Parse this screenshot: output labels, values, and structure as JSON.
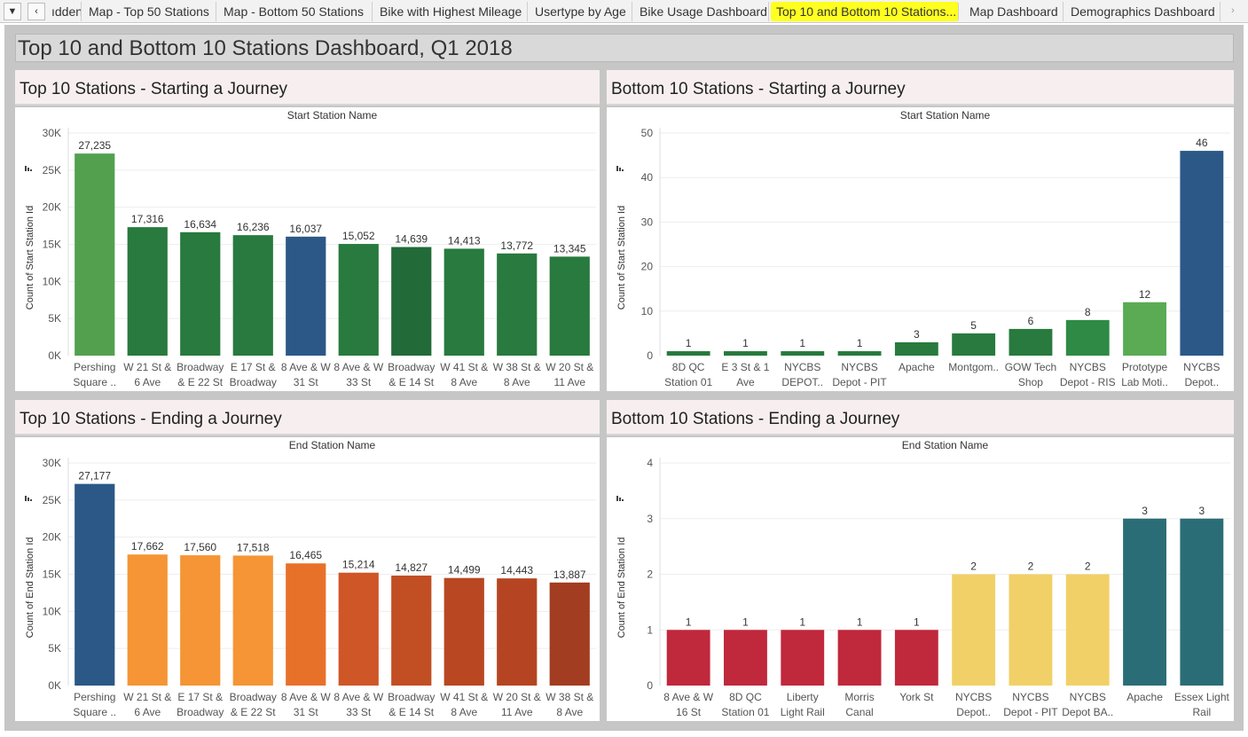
{
  "tabs": {
    "menu_icon": "dropdown-caret",
    "prev_icon": "chevron-left",
    "next_icon": "chevron-right",
    "items": [
      "ıdden",
      "Map - Top 50 Stations",
      "Map - Bottom 50 Stations",
      "Bike with Highest Mileage",
      "Usertype by Age",
      "Bike Usage Dashboard",
      "Top 10 and Bottom 10 Stations...",
      "Map Dashboard",
      "Demographics Dashboard"
    ],
    "active_index": 6,
    "highlight_color": "#ffff20"
  },
  "dashboard": {
    "title": "Top 10 and Bottom 10 Stations Dashboard, Q1 2018"
  },
  "panels": [
    {
      "title": "Top 10 Stations - Starting a Journey"
    },
    {
      "title": "Bottom 10 Stations - Starting a Journey"
    },
    {
      "title": "Top 10 Stations - Ending a Journey"
    },
    {
      "title": "Bottom 10 Stations - Ending a Journey"
    }
  ],
  "chart_data": [
    {
      "type": "bar",
      "title": "Start Station Name",
      "ylabel": "Count of Start Station Id",
      "ylim": [
        0,
        30000
      ],
      "yticks": [
        0,
        5000,
        10000,
        15000,
        20000,
        25000,
        30000
      ],
      "ytick_labels": [
        "0K",
        "5K",
        "10K",
        "15K",
        "20K",
        "25K",
        "30K"
      ],
      "grid": true,
      "categories": [
        [
          "Pershing",
          "Square .."
        ],
        [
          "W 21 St &",
          "6 Ave"
        ],
        [
          "Broadway",
          "& E 22 St"
        ],
        [
          "E 17 St &",
          "Broadway"
        ],
        [
          "8 Ave & W",
          "31 St"
        ],
        [
          "8 Ave & W",
          "33 St"
        ],
        [
          "Broadway",
          "& E 14 St"
        ],
        [
          "W 41 St &",
          "8 Ave"
        ],
        [
          "W 38 St &",
          "8 Ave"
        ],
        [
          "W 20 St &",
          "11 Ave"
        ]
      ],
      "values": [
        27235,
        17316,
        16634,
        16236,
        16037,
        15052,
        14639,
        14413,
        13772,
        13345
      ],
      "value_labels": [
        "27,235",
        "17,316",
        "16,634",
        "16,236",
        "16,037",
        "15,052",
        "14,639",
        "14,413",
        "13,772",
        "13,345"
      ],
      "colors": [
        "#53a04f",
        "#287a3e",
        "#287a3e",
        "#287a3e",
        "#2b5886",
        "#287a3e",
        "#226b38",
        "#287a3e",
        "#287a3e",
        "#287a3e"
      ]
    },
    {
      "type": "bar",
      "title": "Start Station Name",
      "ylabel": "Count of Start Station Id",
      "ylim": [
        0,
        50
      ],
      "yticks": [
        0,
        10,
        20,
        30,
        40,
        50
      ],
      "ytick_labels": [
        "0",
        "10",
        "20",
        "30",
        "40",
        "50"
      ],
      "grid": true,
      "categories": [
        [
          "8D QC",
          "Station 01"
        ],
        [
          "E 3 St & 1",
          "Ave"
        ],
        [
          "NYCBS",
          "DEPOT.."
        ],
        [
          "NYCBS",
          "Depot - PIT"
        ],
        [
          "Apache",
          ""
        ],
        [
          "Montgom..",
          ""
        ],
        [
          "GOW Tech",
          "Shop"
        ],
        [
          "NYCBS",
          "Depot - RIS"
        ],
        [
          "Prototype",
          "Lab Moti.."
        ],
        [
          "NYCBS",
          "Depot.."
        ]
      ],
      "values": [
        1,
        1,
        1,
        1,
        3,
        5,
        6,
        8,
        12,
        46
      ],
      "value_labels": [
        "1",
        "1",
        "1",
        "1",
        "3",
        "5",
        "6",
        "8",
        "12",
        "46"
      ],
      "colors": [
        "#287a3e",
        "#287a3e",
        "#287a3e",
        "#287a3e",
        "#287a3e",
        "#287a3e",
        "#287a3e",
        "#2e8a45",
        "#5aab54",
        "#2b5886"
      ]
    },
    {
      "type": "bar",
      "title": "End Station Name",
      "ylabel": "Count of End Station Id",
      "ylim": [
        0,
        30000
      ],
      "yticks": [
        0,
        5000,
        10000,
        15000,
        20000,
        25000,
        30000
      ],
      "ytick_labels": [
        "0K",
        "5K",
        "10K",
        "15K",
        "20K",
        "25K",
        "30K"
      ],
      "grid": true,
      "categories": [
        [
          "Pershing",
          "Square .."
        ],
        [
          "W 21 St &",
          "6 Ave"
        ],
        [
          "E 17 St &",
          "Broadway"
        ],
        [
          "Broadway",
          "& E 22 St"
        ],
        [
          "8 Ave & W",
          "31 St"
        ],
        [
          "8 Ave & W",
          "33 St"
        ],
        [
          "Broadway",
          "& E 14 St"
        ],
        [
          "W 41 St &",
          "8 Ave"
        ],
        [
          "W 20 St &",
          "11 Ave"
        ],
        [
          "W 38 St &",
          "8 Ave"
        ]
      ],
      "values": [
        27177,
        17662,
        17560,
        17518,
        16465,
        15214,
        14827,
        14499,
        14443,
        13887
      ],
      "value_labels": [
        "27,177",
        "17,662",
        "17,560",
        "17,518",
        "16,465",
        "15,214",
        "14,827",
        "14,499",
        "14,443",
        "13,887"
      ],
      "colors": [
        "#2b5886",
        "#f59535",
        "#f59535",
        "#f59535",
        "#e8712a",
        "#cf5626",
        "#c24e24",
        "#b84722",
        "#b54522",
        "#a33d21"
      ]
    },
    {
      "type": "bar",
      "title": "End Station Name",
      "ylabel": "Count of End Station Id",
      "ylim": [
        0,
        4
      ],
      "yticks": [
        0,
        1,
        2,
        3,
        4
      ],
      "ytick_labels": [
        "0",
        "1",
        "2",
        "3",
        "4"
      ],
      "grid": true,
      "categories": [
        [
          "8 Ave & W",
          "16 St"
        ],
        [
          "8D QC",
          "Station 01"
        ],
        [
          "Liberty",
          "Light Rail"
        ],
        [
          "Morris",
          "Canal"
        ],
        [
          "York St",
          ""
        ],
        [
          "NYCBS",
          "Depot.."
        ],
        [
          "NYCBS",
          "Depot - PIT"
        ],
        [
          "NYCBS",
          "Depot BA.."
        ],
        [
          "Apache",
          ""
        ],
        [
          "Essex Light",
          "Rail"
        ]
      ],
      "values": [
        1,
        1,
        1,
        1,
        1,
        2,
        2,
        2,
        3,
        3
      ],
      "value_labels": [
        "1",
        "1",
        "1",
        "1",
        "1",
        "2",
        "2",
        "2",
        "3",
        "3"
      ],
      "colors": [
        "#c0283c",
        "#c0283c",
        "#c0283c",
        "#c0283c",
        "#c0283c",
        "#f1d067",
        "#f1d067",
        "#f1d067",
        "#2b6d76",
        "#2b6d76"
      ]
    }
  ]
}
